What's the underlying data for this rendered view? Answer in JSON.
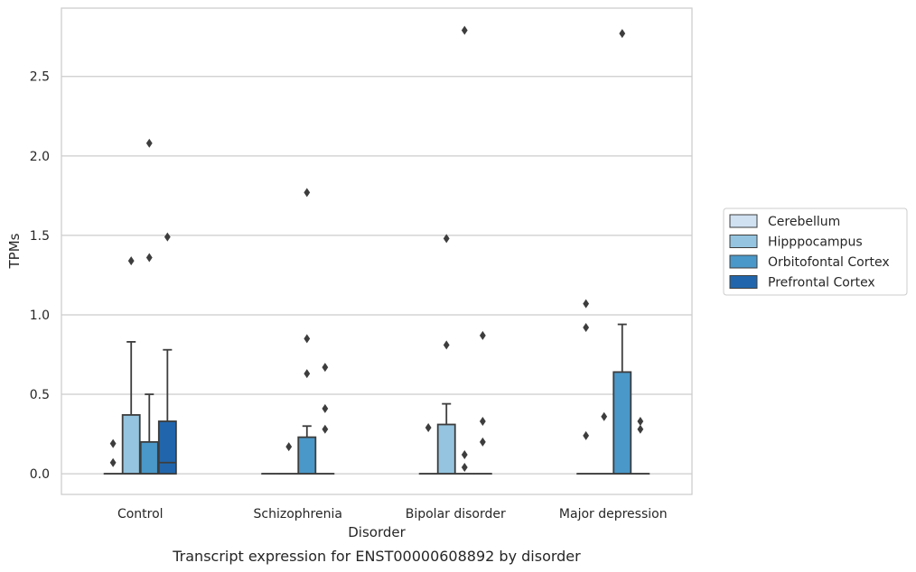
{
  "chart_data": {
    "type": "boxplot",
    "caption": "Transcript expression for ENST00000608892 by disorder",
    "xlabel": "Disorder",
    "ylabel": "TPMs",
    "ylim": [
      -0.13,
      2.93
    ],
    "yticks": [
      0.0,
      0.5,
      1.0,
      1.5,
      2.0,
      2.5
    ],
    "ytick_labels": [
      "0.0",
      "0.5",
      "1.0",
      "1.5",
      "2.0",
      "2.5"
    ],
    "grid": "horizontal",
    "legend_position": "right",
    "categories": [
      "Control",
      "Schizophrenia",
      "Bipolar disorder",
      "Major depression"
    ],
    "series": [
      {
        "name": "Cerebellum",
        "color": "#d0e1f2",
        "boxes": [
          {
            "q1": 0,
            "median": 0,
            "q3": 0,
            "whisker_low": 0,
            "whisker_high": 0,
            "outliers": [
              0.07,
              0.19
            ]
          },
          {
            "q1": 0,
            "median": 0,
            "q3": 0,
            "whisker_low": 0,
            "whisker_high": 0,
            "outliers": []
          },
          {
            "q1": 0,
            "median": 0,
            "q3": 0,
            "whisker_low": 0,
            "whisker_high": 0,
            "outliers": [
              0.29
            ]
          },
          {
            "q1": 0,
            "median": 0,
            "q3": 0,
            "whisker_low": 0,
            "whisker_high": 0,
            "outliers": [
              0.24,
              0.92,
              1.07
            ]
          }
        ]
      },
      {
        "name": "Hipppocampus",
        "color": "#94c4df",
        "boxes": [
          {
            "q1": 0,
            "median": 0,
            "q3": 0.37,
            "whisker_low": 0,
            "whisker_high": 0.83,
            "outliers": [
              1.34
            ]
          },
          {
            "q1": 0,
            "median": 0,
            "q3": 0,
            "whisker_low": 0,
            "whisker_high": 0,
            "outliers": [
              0.17
            ]
          },
          {
            "q1": 0,
            "median": 0,
            "q3": 0.31,
            "whisker_low": 0,
            "whisker_high": 0.44,
            "outliers": [
              0.81,
              1.48
            ]
          },
          {
            "q1": 0,
            "median": 0,
            "q3": 0,
            "whisker_low": 0,
            "whisker_high": 0,
            "outliers": [
              0.36
            ]
          }
        ]
      },
      {
        "name": "Orbitofontal Cortex",
        "color": "#4a98c9",
        "boxes": [
          {
            "q1": 0,
            "median": 0,
            "q3": 0.2,
            "whisker_low": 0,
            "whisker_high": 0.5,
            "outliers": [
              1.36,
              2.08
            ]
          },
          {
            "q1": 0,
            "median": 0,
            "q3": 0.23,
            "whisker_low": 0,
            "whisker_high": 0.3,
            "outliers": [
              0.63,
              0.85,
              1.77
            ]
          },
          {
            "q1": 0,
            "median": 0,
            "q3": 0,
            "whisker_low": 0,
            "whisker_high": 0,
            "outliers": [
              0.04,
              0.12,
              2.79
            ]
          },
          {
            "q1": 0,
            "median": 0,
            "q3": 0.64,
            "whisker_low": 0,
            "whisker_high": 0.94,
            "outliers": [
              2.77
            ]
          }
        ]
      },
      {
        "name": "Prefrontal Cortex",
        "color": "#2166ac",
        "boxes": [
          {
            "q1": 0,
            "median": 0.07,
            "q3": 0.33,
            "whisker_low": 0,
            "whisker_high": 0.78,
            "outliers": [
              1.49
            ]
          },
          {
            "q1": 0,
            "median": 0,
            "q3": 0,
            "whisker_low": 0,
            "whisker_high": 0,
            "outliers": [
              0.28,
              0.41,
              0.67
            ]
          },
          {
            "q1": 0,
            "median": 0,
            "q3": 0,
            "whisker_low": 0,
            "whisker_high": 0,
            "outliers": [
              0.2,
              0.33,
              0.87
            ]
          },
          {
            "q1": 0,
            "median": 0,
            "q3": 0,
            "whisker_low": 0,
            "whisker_high": 0,
            "outliers": [
              0.28,
              0.33
            ]
          }
        ]
      }
    ]
  }
}
